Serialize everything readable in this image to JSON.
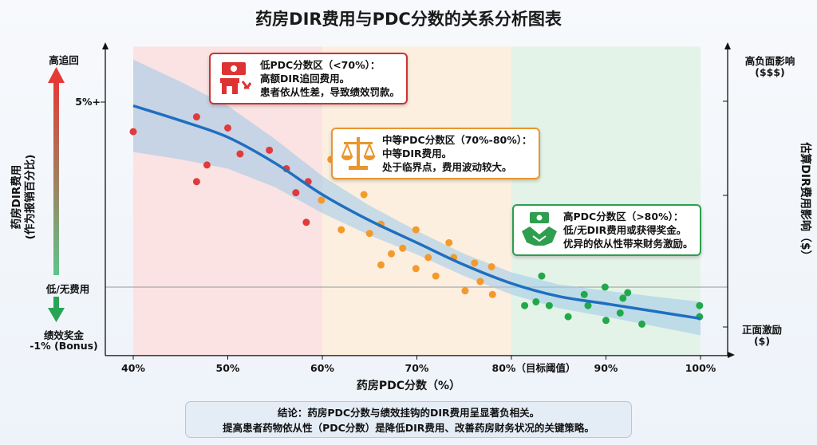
{
  "chart_data": {
    "type": "scatter",
    "title": "药房DIR费用与PDC分数的关系分析图表",
    "xlabel": "药房PDC分数（%）",
    "ylabel": "药房DIR费用\n(作为报销百分比)",
    "ylabel_right": "估算DIR费用影响（$）",
    "xlim": [
      37,
      103
    ],
    "ylim": [
      -1.85,
      6.5
    ],
    "x_ticks": [
      {
        "value": 40,
        "label": "40%"
      },
      {
        "value": 50,
        "label": "50%"
      },
      {
        "value": 60,
        "label": "60%"
      },
      {
        "value": 70,
        "label": "70%"
      },
      {
        "value": 80,
        "label": "80%（目标阈值）"
      },
      {
        "value": 90,
        "label": "90%"
      },
      {
        "value": 100,
        "label": "100%"
      }
    ],
    "y_labels": {
      "top": "高追回",
      "five": "5%+",
      "zero": "低/无费用",
      "bottom_1": "绩效奖金",
      "bottom_2": "-1% (Bonus)"
    },
    "right_labels": {
      "top_1": "高负面影响",
      "top_2": "($$$)",
      "bottom_1": "正面激励",
      "bottom_2": "($)"
    },
    "zones": [
      {
        "from": 40,
        "to": 60,
        "color": "#fbe3e3"
      },
      {
        "from": 60,
        "to": 80,
        "color": "#fcefe0"
      },
      {
        "from": 80,
        "to": 100,
        "color": "#e4f3e7"
      }
    ],
    "series": [
      {
        "color": "#e03a3a",
        "points": [
          [
            40,
            4.2
          ],
          [
            46.7,
            4.6
          ],
          [
            46.7,
            2.85
          ],
          [
            47.8,
            3.3
          ],
          [
            50,
            4.3
          ],
          [
            51.3,
            3.6
          ],
          [
            54.4,
            3.7
          ],
          [
            56.2,
            3.2
          ],
          [
            57.2,
            2.55
          ],
          [
            58.5,
            2.85
          ],
          [
            58.3,
            1.75
          ]
        ]
      },
      {
        "color": "#f39a2b",
        "points": [
          [
            59.9,
            2.35
          ],
          [
            60.9,
            3.45
          ],
          [
            62,
            1.55
          ],
          [
            64.4,
            2.5
          ],
          [
            65,
            1.45
          ],
          [
            66.2,
            1.7
          ],
          [
            66.2,
            0.6
          ],
          [
            67.3,
            0.9
          ],
          [
            68.5,
            1.05
          ],
          [
            69.9,
            1.55
          ],
          [
            69.9,
            0.5
          ],
          [
            71.2,
            0.8
          ],
          [
            72,
            0.3
          ],
          [
            73.4,
            1.2
          ],
          [
            73.9,
            0.8
          ],
          [
            75.1,
            -0.1
          ],
          [
            76.1,
            0.65
          ],
          [
            76.7,
            0.15
          ],
          [
            77.9,
            0.55
          ],
          [
            78,
            -0.2
          ]
        ]
      },
      {
        "color": "#22a84a",
        "points": [
          [
            81.4,
            -0.5
          ],
          [
            82.6,
            -0.4
          ],
          [
            83.2,
            0.3
          ],
          [
            84,
            -0.5
          ],
          [
            86,
            -0.8
          ],
          [
            87.7,
            -0.2
          ],
          [
            88.1,
            -0.5
          ],
          [
            89.9,
            0
          ],
          [
            90,
            -0.9
          ],
          [
            91.8,
            -0.3
          ],
          [
            92.3,
            -0.15
          ],
          [
            91.5,
            -0.7
          ],
          [
            93.8,
            -1.0
          ],
          [
            99.9,
            -0.5
          ],
          [
            99.9,
            -0.8
          ]
        ]
      }
    ],
    "trend": {
      "color": "#1f6fc0",
      "points": [
        [
          40,
          4.9
        ],
        [
          45,
          4.5
        ],
        [
          50,
          4.05
        ],
        [
          55,
          3.35
        ],
        [
          60,
          2.5
        ],
        [
          65,
          1.8
        ],
        [
          70,
          1.2
        ],
        [
          75,
          0.6
        ],
        [
          80,
          0.1
        ],
        [
          85,
          -0.25
        ],
        [
          90,
          -0.45
        ],
        [
          95,
          -0.65
        ],
        [
          100,
          -0.85
        ]
      ],
      "band": [
        1.25,
        1.05,
        0.85,
        0.65,
        0.5,
        0.4,
        0.32,
        0.3,
        0.3,
        0.32,
        0.35,
        0.4,
        0.45
      ]
    },
    "grid": false
  },
  "callouts": {
    "low": {
      "l1": "低PDC分数区（<70%）：",
      "l2": "高额DIR追回费用。",
      "l3": "患者依从性差，导致绩效罚款。",
      "color": "#cc3333"
    },
    "mid": {
      "l1": "中等PDC分数区（70%-80%）：",
      "l2": "中等DIR费用。",
      "l3": "处于临界点，费用波动较大。",
      "color": "#e8962e"
    },
    "high": {
      "l1": "高PDC分数区（>80%）：",
      "l2": "低/无DIR费用或获得奖金。",
      "l3": "优异的依从性带来财务激励。",
      "color": "#2e9e4f"
    }
  },
  "conclusion": {
    "line1": "结论：药房PDC分数与绩效挂钩的DIR费用呈显著负相关。",
    "line2": "提高患者药物依从性（PDC分数）是降低DIR费用、改善药房财务状况的关键策略。"
  }
}
